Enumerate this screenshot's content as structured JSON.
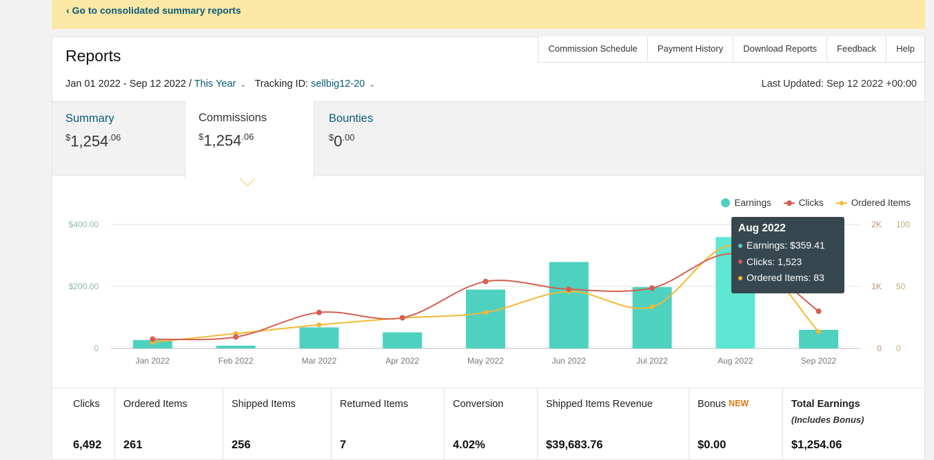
{
  "banner": {
    "back_link": "‹ Go to consolidated summary reports"
  },
  "header": {
    "title": "Reports",
    "tabs": [
      "Commission Schedule",
      "Payment History",
      "Download Reports",
      "Feedback",
      "Help"
    ]
  },
  "filter": {
    "date_range": "Jan 01 2022 - Sep 12 2022 / ",
    "period": "This Year",
    "tracking_label": "Tracking ID: ",
    "tracking_id": "sellbig12-20",
    "last_updated": "Last Updated: Sep 12 2022 +00:00"
  },
  "summary_tabs": [
    {
      "label": "Summary",
      "dollars": "1,254",
      "cents": ".06"
    },
    {
      "label": "Commissions",
      "dollars": "1,254",
      "cents": ".06"
    },
    {
      "label": "Bounties",
      "dollars": "0",
      "cents": ".00"
    }
  ],
  "chart_data": {
    "type": "bar",
    "categories": [
      "Jan 2022",
      "Feb 2022",
      "Mar 2022",
      "Apr 2022",
      "May 2022",
      "Jun 2022",
      "Jul 2022",
      "Aug 2022",
      "Sep 2022"
    ],
    "series": [
      {
        "name": "Earnings",
        "type": "bar",
        "axis": "left",
        "values": [
          27,
          9,
          68,
          52,
          190,
          279,
          198,
          359.41,
          60
        ]
      },
      {
        "name": "Clicks",
        "type": "line",
        "axis": "right1",
        "values": [
          150,
          185,
          580,
          495,
          1080,
          955,
          975,
          1523,
          600
        ]
      },
      {
        "name": "Ordered Items",
        "type": "line",
        "axis": "right2",
        "values": [
          5,
          12,
          19,
          24.5,
          29,
          46,
          33.5,
          83,
          13.5
        ]
      }
    ],
    "left_axis": {
      "ticks": [
        "0",
        "$200.00",
        "$400.00"
      ],
      "ylim": [
        0,
        400
      ]
    },
    "right1_axis": {
      "ticks": [
        "0",
        "1K",
        "2K"
      ],
      "ylim": [
        0,
        2000
      ]
    },
    "right2_axis": {
      "ticks": [
        "0",
        "50",
        "100"
      ],
      "ylim": [
        0,
        100
      ]
    },
    "legend_position": "top-right",
    "grid": true,
    "colors": {
      "Earnings": "#4fd1c0",
      "Clicks": "#d45f52",
      "Ordered Items": "#f4b732"
    }
  },
  "legend": [
    "Earnings",
    "Clicks",
    "Ordered Items"
  ],
  "tooltip": {
    "title": "Aug 2022",
    "rows": [
      "Earnings: $359.41",
      "Clicks: 1,523",
      "Ordered Items: 83"
    ]
  },
  "stats": [
    {
      "label": "Clicks",
      "value": "6,492"
    },
    {
      "label": "Ordered Items",
      "value": "261"
    },
    {
      "label": "Shipped Items",
      "value": "256"
    },
    {
      "label": "Returned Items",
      "value": "7"
    },
    {
      "label": "Conversion",
      "value": "4.02%"
    },
    {
      "label": "Shipped Items Revenue",
      "value": "$39,683.76"
    },
    {
      "label": "Bonus ",
      "badge": "NEW",
      "value": "$0.00"
    },
    {
      "label": "Total Earnings",
      "sublabel": "(Includes Bonus)",
      "value": "$1,254.06"
    }
  ]
}
